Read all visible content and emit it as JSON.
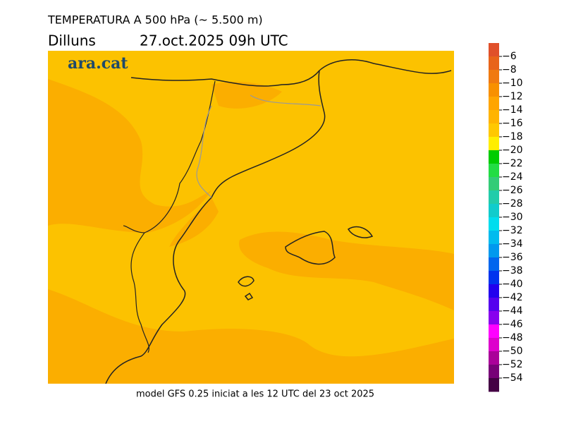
{
  "header": {
    "title": "TEMPERATURA A 500 hPa (~ 5.500 m)",
    "day": "Dilluns",
    "date": "27.oct.2025 09h UTC"
  },
  "map": {
    "logo": "ara.cat"
  },
  "footer": "model GFS 0.25 iniciat a les 12 UTC del 23 oct 2025",
  "colorbar": {
    "labels": [
      "−6",
      "−8",
      "−10",
      "−12",
      "−14",
      "−16",
      "−18",
      "−20",
      "−22",
      "−24",
      "−26",
      "−28",
      "−30",
      "−32",
      "−34",
      "−36",
      "−38",
      "−40",
      "−42",
      "−44",
      "−46",
      "−48",
      "−50",
      "−52",
      "−54"
    ],
    "colors": [
      "#e0502a",
      "#e8641a",
      "#f07a10",
      "#f89000",
      "#ffa500",
      "#ffb400",
      "#ffc800",
      "#ffee00",
      "#00cc00",
      "#22dd44",
      "#33cc77",
      "#22ccaa",
      "#11cccc",
      "#00ddee",
      "#00bbee",
      "#0099ee",
      "#0066ee",
      "#0033ee",
      "#2200ee",
      "#5500ee",
      "#8800ee",
      "#ff00ff",
      "#dd00cc",
      "#aa0099",
      "#770077",
      "#440044"
    ]
  }
}
